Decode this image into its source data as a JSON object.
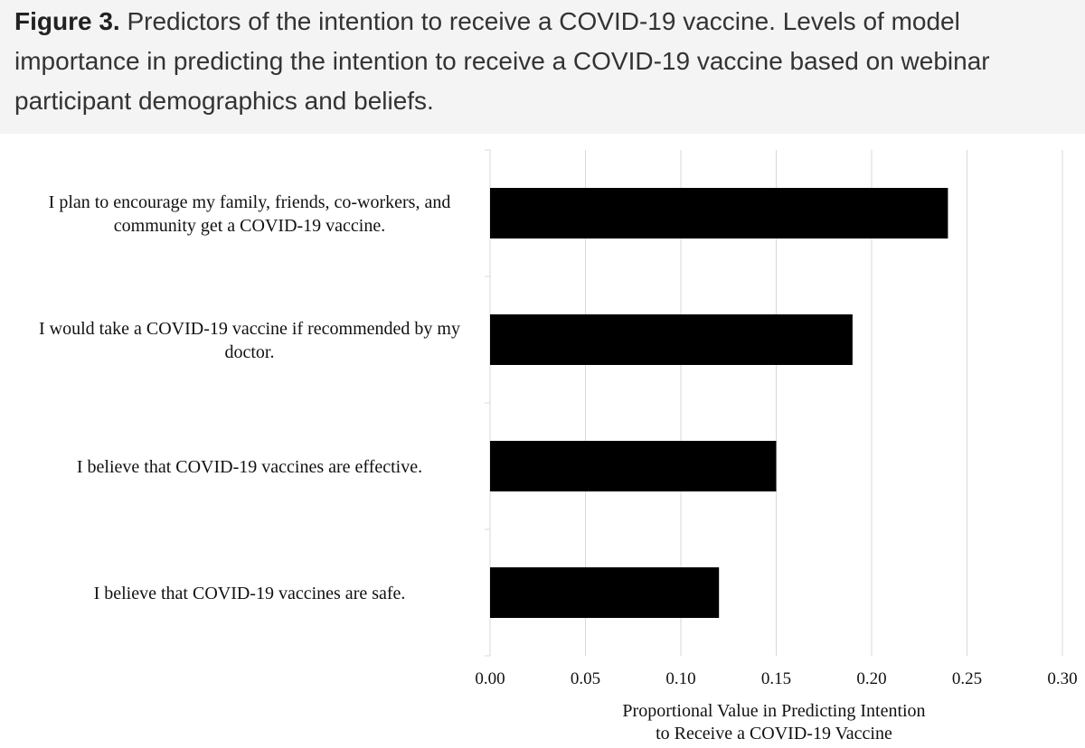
{
  "figure": {
    "label": "Figure 3.",
    "caption": "Predictors of the intention to receive a COVID-19 vaccine. Levels of model importance in predicting the intention to receive a COVID-19 vaccine based on webinar participant demographics and beliefs."
  },
  "chart_data": {
    "type": "bar",
    "orientation": "horizontal",
    "categories": [
      [
        "I plan to encourage my family, friends, co-workers, and",
        "community get a COVID-19 vaccine."
      ],
      [
        "I would take a COVID-19 vaccine if recommended by my",
        "doctor."
      ],
      [
        "I believe that COVID-19 vaccines are effective."
      ],
      [
        "I believe that COVID-19 vaccines are safe."
      ]
    ],
    "values": [
      0.24,
      0.19,
      0.15,
      0.12
    ],
    "xlim": [
      0,
      0.3
    ],
    "xticks": [
      "0.00",
      "0.05",
      "0.10",
      "0.15",
      "0.20",
      "0.25",
      "0.30"
    ],
    "xlabel": [
      "Proportional Value in Predicting Intention",
      "to Receive a COVID-19 Vaccine"
    ],
    "ylabel": "",
    "grid": "vertical",
    "legend": "none",
    "bar_color": "#000000",
    "grid_color": "#d9d9d9"
  }
}
